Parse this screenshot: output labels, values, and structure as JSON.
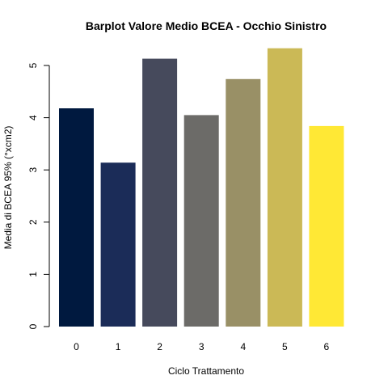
{
  "chart_data": {
    "type": "bar",
    "title": "Barplot Valore Medio BCEA - Occhio Sinistro",
    "xlabel": "Ciclo Trattamento",
    "ylabel": "Media di BCEA 95% (°xcm2)",
    "categories": [
      "0",
      "1",
      "2",
      "3",
      "4",
      "5",
      "6"
    ],
    "values": [
      4.18,
      3.14,
      5.13,
      4.05,
      4.74,
      5.33,
      3.84
    ],
    "colors": [
      "#00193F",
      "#1B2C58",
      "#464A5C",
      "#6C6B68",
      "#999066",
      "#CBB956",
      "#FFE835"
    ],
    "ylim": [
      0,
      5.5
    ],
    "yticks": [
      "0",
      "1",
      "2",
      "3",
      "4",
      "5"
    ],
    "grid": false
  }
}
